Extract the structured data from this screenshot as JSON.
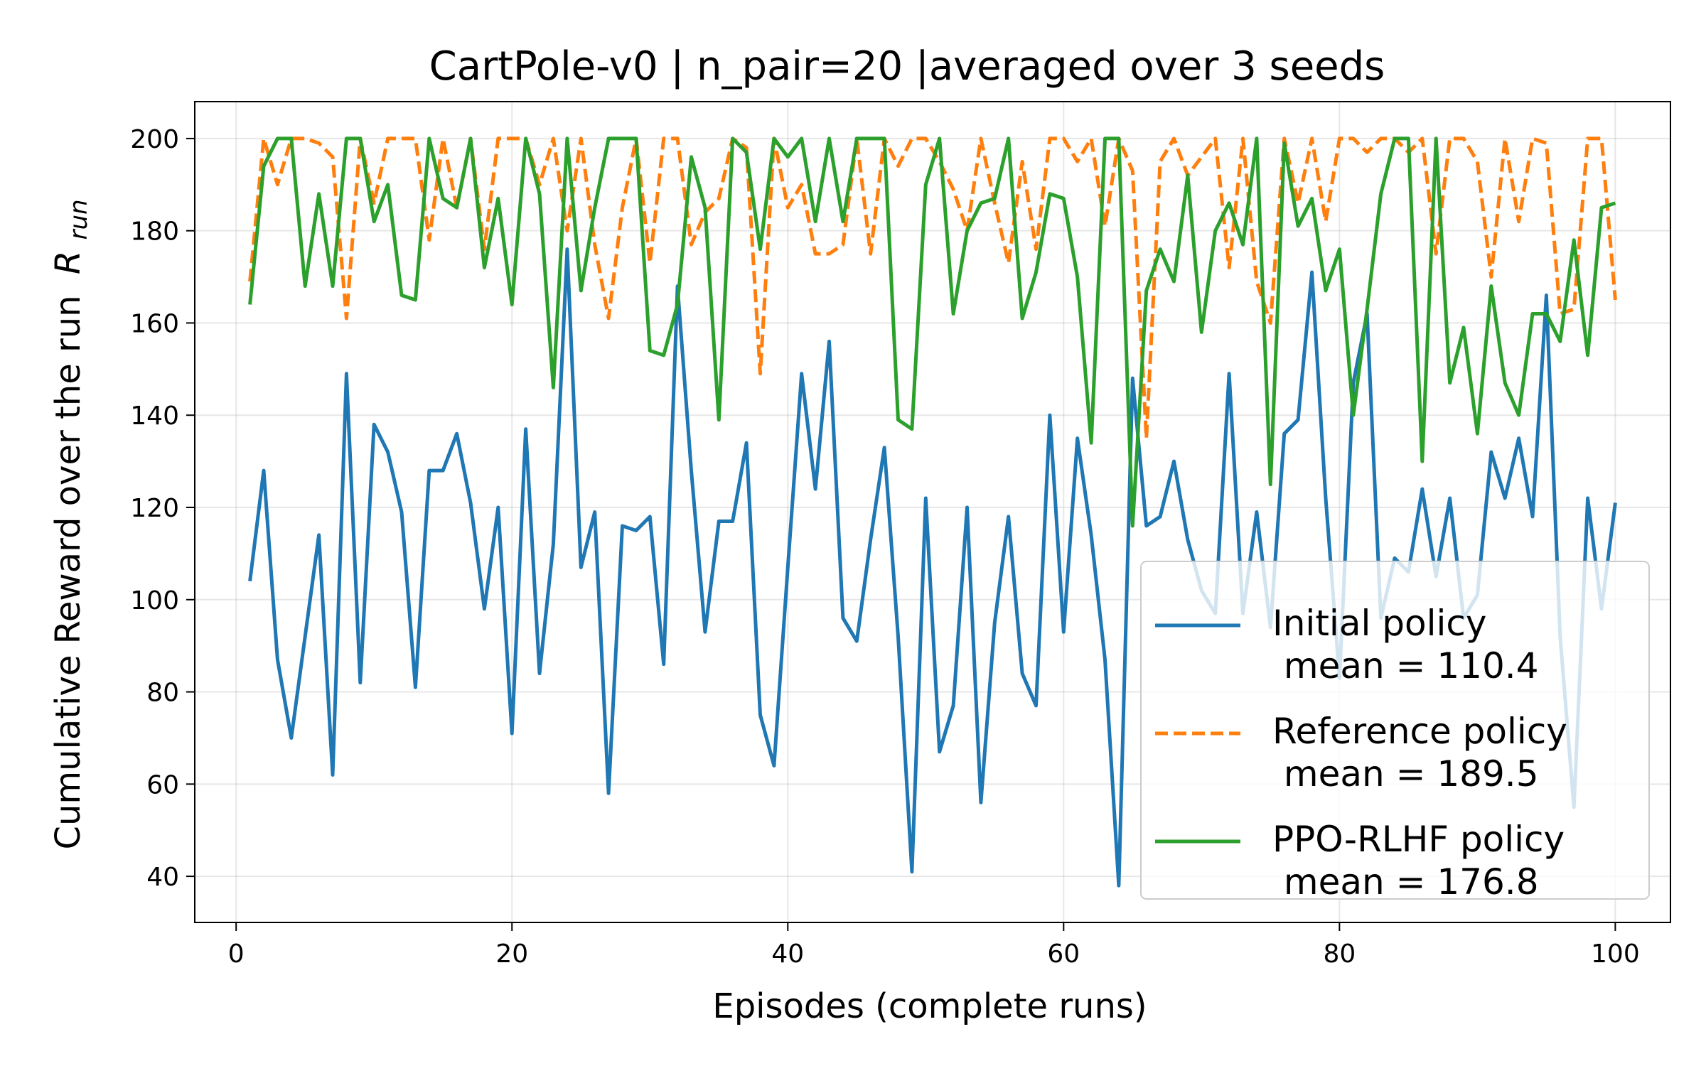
{
  "chart_data": {
    "type": "line",
    "title": "CartPole-v0 | n_pair=20 |averaged over 3 seeds",
    "xlabel": "Episodes (complete runs)",
    "ylabel": "Cumulative Reward over the run",
    "ylabel_symbol": "R",
    "ylabel_subscript": "run",
    "xlim": [
      -3,
      104
    ],
    "ylim": [
      30,
      208
    ],
    "xticks": [
      0,
      20,
      40,
      60,
      80,
      100
    ],
    "yticks": [
      40,
      60,
      80,
      100,
      120,
      140,
      160,
      180,
      200
    ],
    "grid": true,
    "legend_position": "lower-right",
    "x": [
      1,
      2,
      3,
      4,
      5,
      6,
      7,
      8,
      9,
      10,
      11,
      12,
      13,
      14,
      15,
      16,
      17,
      18,
      19,
      20,
      21,
      22,
      23,
      24,
      25,
      26,
      27,
      28,
      29,
      30,
      31,
      32,
      33,
      34,
      35,
      36,
      37,
      38,
      39,
      40,
      41,
      42,
      43,
      44,
      45,
      46,
      47,
      48,
      49,
      50,
      51,
      52,
      53,
      54,
      55,
      56,
      57,
      58,
      59,
      60,
      61,
      62,
      63,
      64,
      65,
      66,
      67,
      68,
      69,
      70,
      71,
      72,
      73,
      74,
      75,
      76,
      77,
      78,
      79,
      80,
      81,
      82,
      83,
      84,
      85,
      86,
      87,
      88,
      89,
      90,
      91,
      92,
      93,
      94,
      95,
      96,
      97,
      98,
      99,
      100
    ],
    "series": [
      {
        "name": "Initial policy",
        "legend_label": "Initial policy",
        "legend_sub": " mean = 110.4",
        "color": "#1f77b4",
        "dash": "solid",
        "values": [
          104,
          128,
          87,
          70,
          92,
          114,
          62,
          149,
          82,
          138,
          132,
          119,
          81,
          128,
          128,
          136,
          121,
          98,
          120,
          71,
          137,
          84,
          112,
          176,
          107,
          119,
          58,
          116,
          115,
          118,
          86,
          168,
          128,
          93,
          117,
          117,
          134,
          75,
          64,
          107,
          149,
          124,
          156,
          96,
          91,
          113,
          133,
          92,
          41,
          122,
          67,
          77,
          120,
          56,
          95,
          118,
          84,
          77,
          140,
          93,
          135,
          114,
          87,
          38,
          148,
          116,
          118,
          130,
          113,
          102,
          97,
          149,
          97,
          119,
          94,
          136,
          139,
          171,
          122,
          83,
          147,
          162,
          96,
          109,
          106,
          124,
          105,
          122,
          96,
          101,
          132,
          122,
          135,
          118,
          166,
          92,
          55,
          122,
          98,
          121
        ]
      },
      {
        "name": "Reference policy",
        "legend_label": "Reference policy",
        "legend_sub": " mean = 189.5",
        "color": "#ff7f0e",
        "dash": "dashed",
        "values": [
          169,
          200,
          190,
          200,
          200,
          199,
          196,
          161,
          200,
          186,
          200,
          200,
          200,
          178,
          200,
          185,
          200,
          176,
          200,
          200,
          200,
          190,
          200,
          180,
          200,
          177,
          161,
          185,
          200,
          173,
          200,
          200,
          177,
          184,
          187,
          200,
          198,
          149,
          200,
          185,
          190,
          175,
          175,
          177,
          200,
          175,
          200,
          194,
          200,
          200,
          195,
          189,
          180,
          200,
          186,
          173,
          195,
          176,
          200,
          200,
          195,
          200,
          181,
          200,
          193,
          135,
          195,
          200,
          192,
          196,
          200,
          172,
          200,
          169,
          160,
          200,
          186,
          200,
          182,
          200,
          200,
          197,
          200,
          200,
          197,
          200,
          175,
          200,
          200,
          195,
          170,
          200,
          182,
          200,
          199,
          162,
          163,
          200,
          200,
          165
        ]
      },
      {
        "name": "PPO-RLHF policy",
        "legend_label": "PPO-RLHF policy",
        "legend_sub": " mean = 176.8",
        "color": "#2ca02c",
        "dash": "solid",
        "values": [
          164,
          194,
          200,
          200,
          168,
          188,
          168,
          200,
          200,
          182,
          190,
          166,
          165,
          200,
          187,
          185,
          200,
          172,
          187,
          164,
          200,
          188,
          146,
          200,
          167,
          185,
          200,
          200,
          200,
          154,
          153,
          164,
          196,
          185,
          139,
          200,
          197,
          176,
          200,
          196,
          200,
          182,
          200,
          182,
          200,
          200,
          200,
          139,
          137,
          190,
          200,
          162,
          180,
          186,
          187,
          200,
          161,
          171,
          188,
          187,
          170,
          134,
          200,
          200,
          116,
          167,
          176,
          169,
          192,
          158,
          180,
          186,
          177,
          200,
          125,
          199,
          181,
          187,
          167,
          176,
          140,
          163,
          188,
          200,
          200,
          130,
          200,
          147,
          159,
          136,
          168,
          147,
          140,
          162,
          162,
          156,
          178,
          153,
          185,
          186
        ]
      }
    ]
  }
}
